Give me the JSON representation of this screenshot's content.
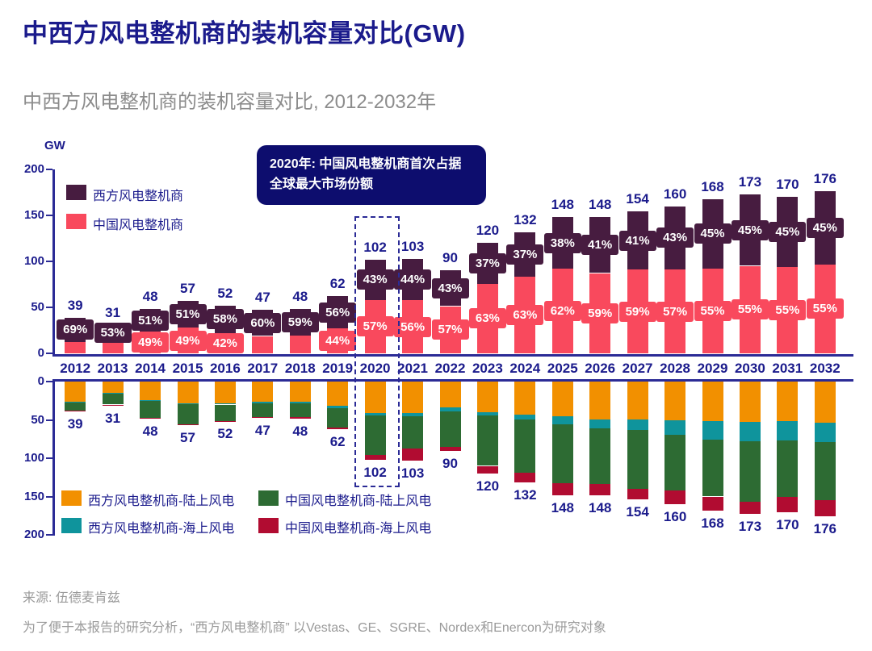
{
  "header": {
    "title": "中西方风电整机商的装机容量对比(GW)",
    "subtitle": "中西方风电整机商的装机容量对比, 2012-2032年"
  },
  "annotation": {
    "line1": "2020年: 中国风电整机商首次占据",
    "line2": "全球最大市场份额"
  },
  "axis": {
    "unit_label": "GW",
    "top_ticks": [
      0,
      50,
      100,
      150,
      200
    ],
    "bottom_ticks": [
      0,
      50,
      100,
      150,
      200
    ]
  },
  "legend_top": [
    {
      "label": "西方风电整机商",
      "color": "#471c40"
    },
    {
      "label": "中国风电整机商",
      "color": "#f9495d"
    }
  ],
  "legend_bottom": [
    {
      "label": "西方风电整机商-陆上风电",
      "color": "#f29000"
    },
    {
      "label": "西方风电整机商-海上风电",
      "color": "#0f949c"
    },
    {
      "label": "中国风电整机商-陆上风电",
      "color": "#2d6b33"
    },
    {
      "label": "中国风电整机商-海上风电",
      "color": "#b10c31"
    }
  ],
  "footer": {
    "source": "来源: 伍德麦肯兹",
    "note": "为了便于本报告的研究分析，“西方风电整机商” 以Vestas、GE、SGRE、Nordex和Enercon为研究对象"
  },
  "colors": {
    "navy_text": "#1b1b8c",
    "axis_line": "#2b2b96",
    "west_total": "#471c40",
    "china_total": "#f9495d",
    "west_onshore": "#f29000",
    "west_offshore": "#0f949c",
    "china_onshore": "#2d6b33",
    "china_offshore": "#b10c31",
    "annotation_bg": "#0d0d6e",
    "highlight_border": "#2b2b96",
    "subtitle_gray": "#8c8c8c",
    "footer_gray": "#9a9a9a"
  },
  "chart_data": {
    "type": "bar",
    "title": "中西方风电整机商的装机容量对比, 2012-2032年",
    "ylabel": "GW",
    "categories": [
      2012,
      2013,
      2014,
      2015,
      2016,
      2017,
      2018,
      2019,
      2020,
      2021,
      2022,
      2023,
      2024,
      2025,
      2026,
      2027,
      2028,
      2029,
      2030,
      2031,
      2032
    ],
    "highlight_year": 2020,
    "top_chart": {
      "description": "annual installed capacity, stacked by OEM origin, with share labels",
      "ylim": [
        0,
        200
      ],
      "totals": [
        39,
        31,
        48,
        57,
        52,
        47,
        48,
        62,
        102,
        103,
        90,
        120,
        132,
        148,
        148,
        154,
        160,
        168,
        173,
        170,
        176
      ],
      "series": [
        {
          "name": "西方风电整机商",
          "pct": [
            69,
            53,
            51,
            51,
            58,
            60,
            59,
            56,
            43,
            44,
            43,
            37,
            37,
            38,
            41,
            41,
            43,
            45,
            45,
            45,
            45
          ],
          "pct_label_shown": [
            true,
            true,
            true,
            true,
            true,
            true,
            true,
            true,
            true,
            true,
            true,
            true,
            true,
            true,
            true,
            true,
            true,
            true,
            true,
            true,
            true
          ]
        },
        {
          "name": "中国风电整机商",
          "pct": [
            31,
            47,
            49,
            49,
            42,
            40,
            41,
            44,
            57,
            56,
            57,
            63,
            63,
            62,
            59,
            59,
            57,
            55,
            55,
            55,
            55
          ],
          "pct_label_shown": [
            false,
            false,
            true,
            true,
            true,
            false,
            false,
            true,
            true,
            true,
            true,
            true,
            true,
            true,
            true,
            true,
            true,
            true,
            true,
            true,
            true
          ]
        }
      ]
    },
    "bottom_chart": {
      "description": "same totals split onshore/offshore, inverted axis (GW estimated from bar heights)",
      "ylim": [
        0,
        200
      ],
      "inverted": true,
      "totals": [
        39,
        31,
        48,
        57,
        52,
        47,
        48,
        62,
        102,
        103,
        90,
        120,
        132,
        148,
        148,
        154,
        160,
        168,
        173,
        170,
        176
      ],
      "series": [
        {
          "name": "西方风电整机商-陆上风电",
          "values": [
            26,
            15,
            24,
            28,
            28,
            26,
            26,
            32,
            41,
            41,
            34,
            40,
            43,
            45,
            49,
            49,
            50,
            52,
            53,
            52,
            54
          ]
        },
        {
          "name": "西方风电整机商-海上风电",
          "values": [
            1,
            1,
            1,
            1,
            2,
            2,
            2,
            3,
            3,
            4,
            5,
            4,
            6,
            11,
            12,
            14,
            19,
            24,
            25,
            25,
            25
          ]
        },
        {
          "name": "中国风电整机商-陆上风电",
          "values": [
            11,
            14,
            22,
            27,
            21,
            18,
            18,
            25,
            52,
            42,
            46,
            66,
            70,
            77,
            73,
            77,
            73,
            74,
            79,
            73,
            76
          ]
        },
        {
          "name": "中国风电整机商-海上风电",
          "values": [
            1,
            1,
            1,
            1,
            1,
            1,
            2,
            2,
            6,
            16,
            5,
            10,
            13,
            15,
            14,
            14,
            18,
            18,
            16,
            20,
            21
          ]
        }
      ]
    }
  }
}
